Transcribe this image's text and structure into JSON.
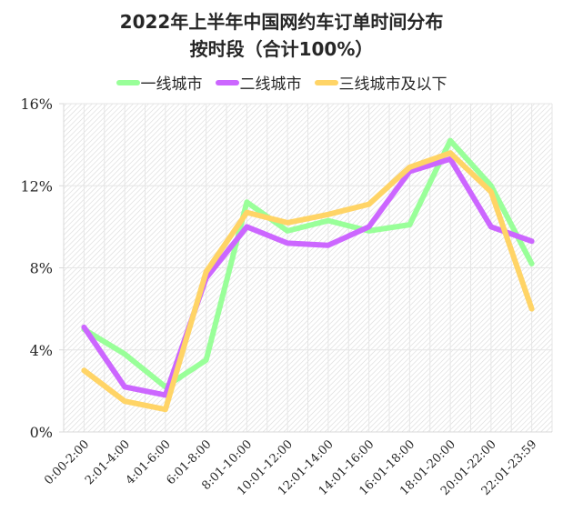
{
  "chart_data": {
    "type": "line",
    "title": "2022年上半年中国网约车订单时间分布",
    "subtitle": "按时段（合计100%）",
    "xlabel": "",
    "ylabel": "",
    "ylim": [
      0,
      16
    ],
    "yticks": [
      "0%",
      "4%",
      "8%",
      "12%",
      "16%"
    ],
    "ytick_values": [
      0,
      4,
      8,
      12,
      16
    ],
    "grid": true,
    "legend_position": "top",
    "categories": [
      "0:00-2:00",
      "2:01-4:00",
      "4:01-6:00",
      "6:01-8:00",
      "8:01-10:00",
      "10:01-12:00",
      "12:01-14:00",
      "14:01-16:00",
      "16:01-18:00",
      "18:01-20:00",
      "20:01-22:00",
      "22:01-23:59"
    ],
    "series": [
      {
        "name": "一线城市",
        "color": "#99ff99",
        "values": [
          5.0,
          3.8,
          2.2,
          3.5,
          11.2,
          9.8,
          10.3,
          9.8,
          10.1,
          14.2,
          12.0,
          8.2
        ]
      },
      {
        "name": "二线城市",
        "color": "#cc66ff",
        "values": [
          5.1,
          2.2,
          1.8,
          7.5,
          10.0,
          9.2,
          9.1,
          10.0,
          12.7,
          13.3,
          10.0,
          9.3
        ]
      },
      {
        "name": "三线城市及以下",
        "color": "#ffd466",
        "values": [
          3.0,
          1.5,
          1.1,
          7.8,
          10.7,
          10.2,
          10.6,
          11.1,
          12.9,
          13.6,
          11.7,
          6.0
        ]
      }
    ]
  },
  "header": {
    "title": "2022年上半年中国网约车订单时间分布",
    "subtitle": "按时段（合计100%）"
  },
  "legend": {
    "items": [
      {
        "label": "一线城市",
        "color": "#99ff99"
      },
      {
        "label": "二线城市",
        "color": "#cc66ff"
      },
      {
        "label": "三线城市及以下",
        "color": "#ffd466"
      }
    ]
  }
}
